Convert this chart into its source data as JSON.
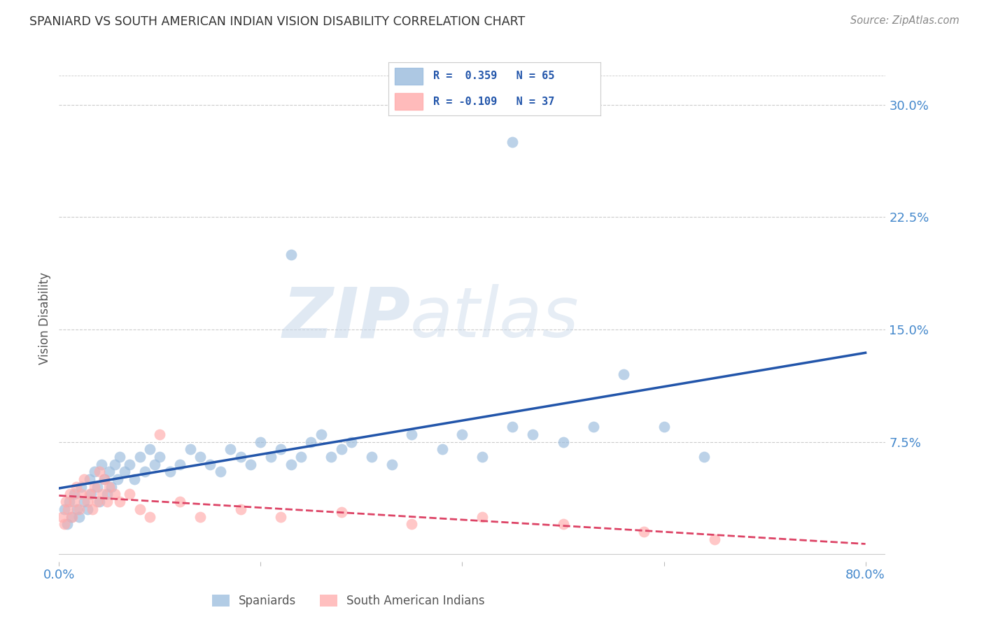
{
  "title": "SPANIARD VS SOUTH AMERICAN INDIAN VISION DISABILITY CORRELATION CHART",
  "source": "Source: ZipAtlas.com",
  "ylabel": "Vision Disability",
  "xlim": [
    0.0,
    0.82
  ],
  "ylim": [
    -0.005,
    0.32
  ],
  "xticks": [
    0.0,
    0.2,
    0.4,
    0.6,
    0.8
  ],
  "xticklabels": [
    "0.0%",
    "",
    "",
    "",
    "80.0%"
  ],
  "yticks": [
    0.075,
    0.15,
    0.225,
    0.3
  ],
  "yticklabels": [
    "7.5%",
    "15.0%",
    "22.5%",
    "30.0%"
  ],
  "grid_color": "#cccccc",
  "background_color": "#ffffff",
  "blue_color": "#99bbdd",
  "pink_color": "#ffaaaa",
  "blue_line_color": "#2255aa",
  "pink_line_color": "#dd4466",
  "title_color": "#333333",
  "tick_color": "#4488cc",
  "legend_r_color": "#2255aa",
  "spaniards_label": "Spaniards",
  "sai_label": "South American Indians",
  "spaniards_x": [
    0.005,
    0.008,
    0.01,
    0.012,
    0.015,
    0.018,
    0.02,
    0.022,
    0.025,
    0.028,
    0.03,
    0.032,
    0.035,
    0.038,
    0.04,
    0.042,
    0.045,
    0.048,
    0.05,
    0.052,
    0.055,
    0.058,
    0.06,
    0.065,
    0.07,
    0.075,
    0.08,
    0.085,
    0.09,
    0.095,
    0.1,
    0.11,
    0.12,
    0.13,
    0.14,
    0.15,
    0.16,
    0.17,
    0.18,
    0.19,
    0.2,
    0.21,
    0.22,
    0.23,
    0.24,
    0.25,
    0.26,
    0.27,
    0.28,
    0.29,
    0.31,
    0.33,
    0.35,
    0.38,
    0.4,
    0.42,
    0.45,
    0.47,
    0.5,
    0.53,
    0.56,
    0.6,
    0.64,
    0.23,
    0.45
  ],
  "spaniards_y": [
    0.03,
    0.02,
    0.035,
    0.025,
    0.04,
    0.03,
    0.025,
    0.045,
    0.035,
    0.03,
    0.05,
    0.04,
    0.055,
    0.045,
    0.035,
    0.06,
    0.05,
    0.04,
    0.055,
    0.045,
    0.06,
    0.05,
    0.065,
    0.055,
    0.06,
    0.05,
    0.065,
    0.055,
    0.07,
    0.06,
    0.065,
    0.055,
    0.06,
    0.07,
    0.065,
    0.06,
    0.055,
    0.07,
    0.065,
    0.06,
    0.075,
    0.065,
    0.07,
    0.06,
    0.065,
    0.075,
    0.08,
    0.065,
    0.07,
    0.075,
    0.065,
    0.06,
    0.08,
    0.07,
    0.08,
    0.065,
    0.085,
    0.08,
    0.075,
    0.085,
    0.12,
    0.085,
    0.065,
    0.2,
    0.275
  ],
  "sai_x": [
    0.003,
    0.005,
    0.007,
    0.009,
    0.011,
    0.013,
    0.015,
    0.017,
    0.02,
    0.022,
    0.025,
    0.028,
    0.03,
    0.033,
    0.035,
    0.038,
    0.04,
    0.043,
    0.045,
    0.048,
    0.05,
    0.055,
    0.06,
    0.07,
    0.08,
    0.09,
    0.1,
    0.12,
    0.14,
    0.18,
    0.22,
    0.28,
    0.35,
    0.42,
    0.5,
    0.58,
    0.65
  ],
  "sai_y": [
    0.025,
    0.02,
    0.035,
    0.03,
    0.04,
    0.025,
    0.035,
    0.045,
    0.03,
    0.04,
    0.05,
    0.035,
    0.04,
    0.03,
    0.045,
    0.035,
    0.055,
    0.04,
    0.05,
    0.035,
    0.045,
    0.04,
    0.035,
    0.04,
    0.03,
    0.025,
    0.08,
    0.035,
    0.025,
    0.03,
    0.025,
    0.028,
    0.02,
    0.025,
    0.02,
    0.015,
    0.01
  ]
}
